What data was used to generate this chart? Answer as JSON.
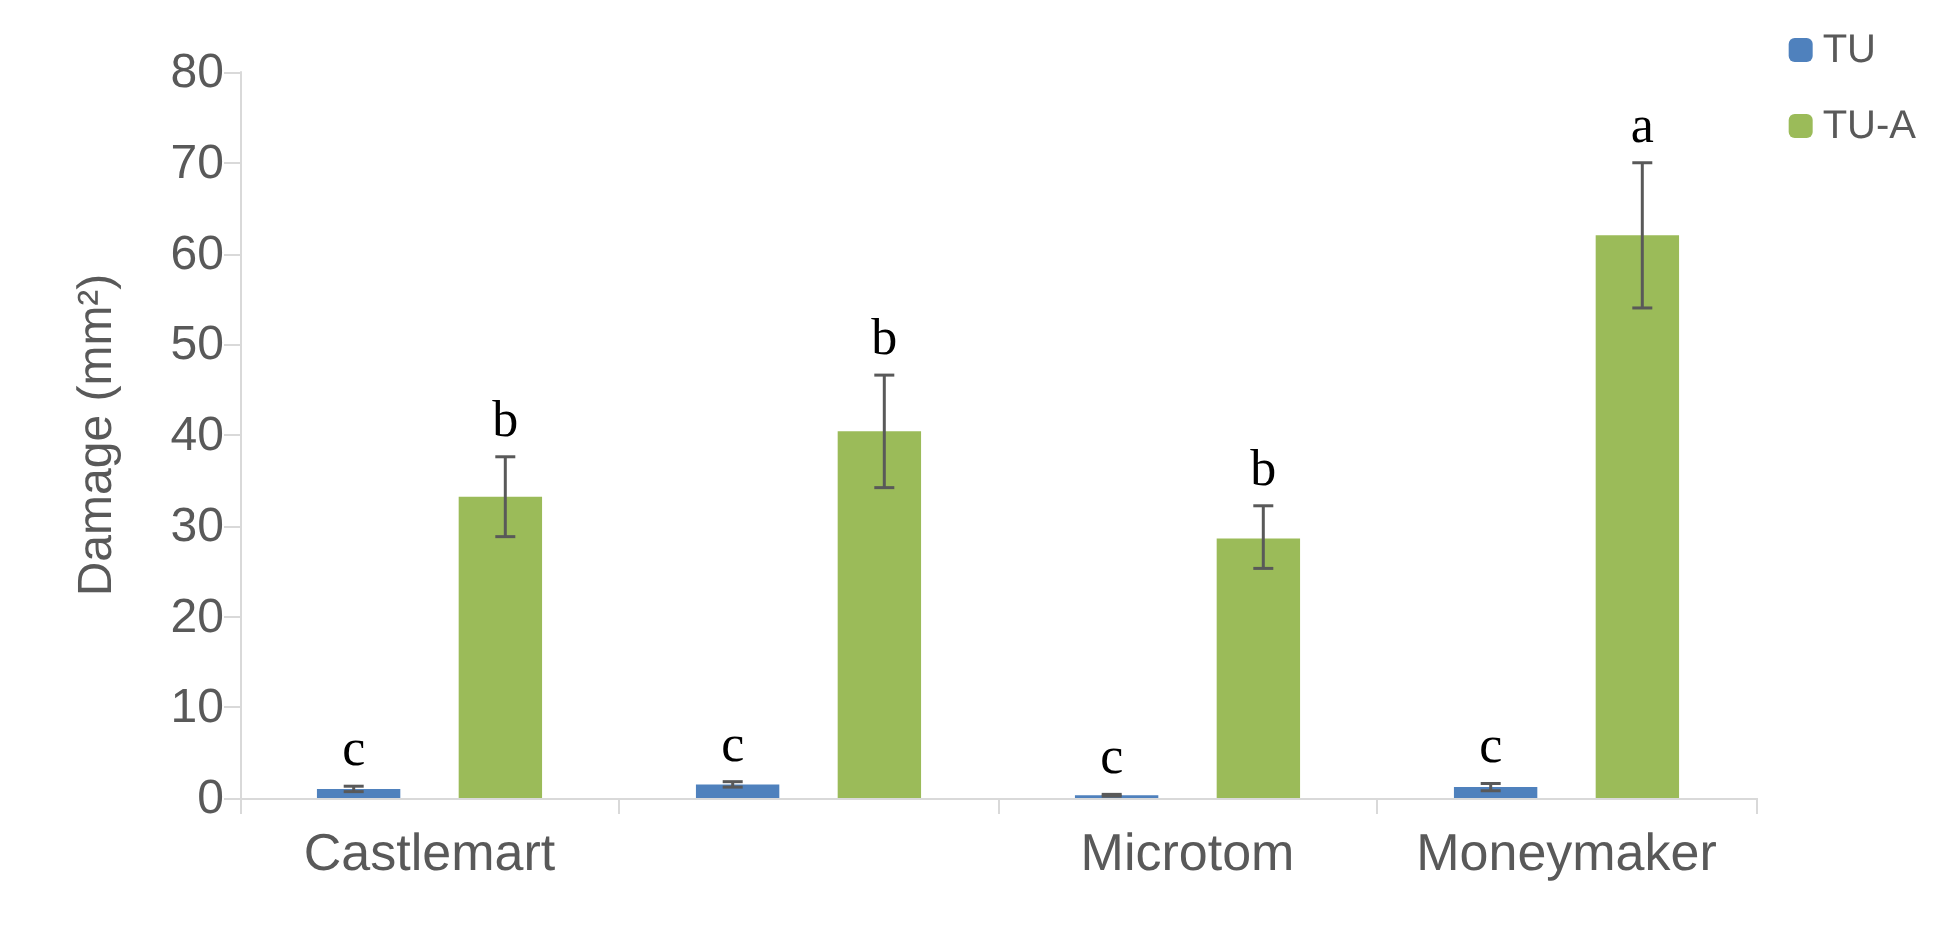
{
  "chart_data": {
    "type": "bar",
    "ylabel": "Damage (mm²)",
    "categories": [
      "Castlemart",
      null,
      "Microtom",
      "Moneymaker"
    ],
    "series": [
      {
        "name": "TU",
        "color": "#4f81bd",
        "values": [
          1.0,
          1.5,
          0.3,
          1.2
        ],
        "errors": [
          0.3,
          0.3,
          0.1,
          0.4
        ],
        "value_labels": [
          "c",
          "c",
          "c",
          "c"
        ]
      },
      {
        "name": "TU-A",
        "color": "#9bbb59",
        "values": [
          33.2,
          40.4,
          28.6,
          62
        ],
        "errors": [
          [
            28.8,
            37.6
          ],
          [
            34.2,
            46.6
          ],
          [
            25.3,
            32.2
          ],
          [
            54,
            70
          ]
        ],
        "value_labels": [
          "b",
          "b",
          "b",
          "a"
        ]
      }
    ],
    "ylim": [
      0,
      80
    ],
    "yticks": [
      0,
      10,
      20,
      30,
      40,
      50,
      60,
      70,
      80
    ],
    "grid": false,
    "legend": "top right"
  }
}
